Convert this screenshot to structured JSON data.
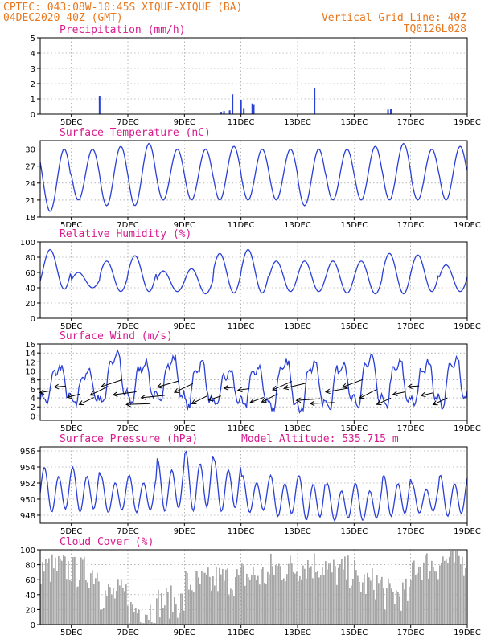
{
  "header": {
    "line1_left": "CPTEC:   043:08W-10:45S  XIQUE-XIQUE (BA)",
    "line2_left": "04DEC2020 40Z (GMT)",
    "line1_right": "Vertical Grid Line: 40Z",
    "line2_right": "TQ0126L028"
  },
  "colors": {
    "line": "#2a3fd6",
    "bar": "#2a3fd6",
    "cloud": "#a6a6a6",
    "header": "#e8781f",
    "title": "#d81c8e"
  },
  "x_ticks": [
    "5DEC",
    "7DEC",
    "9DEC",
    "11DEC",
    "13DEC",
    "15DEC",
    "17DEC",
    "19DEC"
  ],
  "chart_data": [
    {
      "id": "precip",
      "type": "bar",
      "title": "Precipitation (mm/h)",
      "ylim": [
        0,
        5
      ],
      "yticks": [
        0,
        1,
        2,
        3,
        4,
        5
      ],
      "x": [
        6.0,
        10.3,
        10.4,
        10.6,
        10.7,
        11.0,
        11.1,
        11.4,
        11.45,
        13.6,
        16.2,
        16.3
      ],
      "values": [
        1.2,
        0.15,
        0.2,
        0.25,
        1.3,
        0.9,
        0.4,
        0.7,
        0.6,
        1.7,
        0.3,
        0.35
      ]
    },
    {
      "id": "temp",
      "type": "line",
      "title": "Surface Temperature (nC)",
      "ylim": [
        18,
        31.5
      ],
      "yticks": [
        18,
        21,
        24,
        27,
        30
      ],
      "amp_min": [
        19,
        21,
        20,
        20,
        21,
        21,
        21,
        21,
        21,
        20,
        21,
        21,
        21,
        21,
        21,
        22
      ],
      "amp_max": [
        30,
        30,
        30.5,
        31,
        30,
        30,
        30.5,
        30,
        30,
        30,
        30,
        30.5,
        31,
        30,
        30.5,
        30.5
      ]
    },
    {
      "id": "rh",
      "type": "line",
      "title": "Relative Humidity (%)",
      "ylim": [
        0,
        100
      ],
      "yticks": [
        0,
        20,
        40,
        60,
        80,
        100
      ],
      "amp_min": [
        38,
        40,
        35,
        35,
        35,
        32,
        33,
        33,
        35,
        35,
        33,
        32,
        32,
        35,
        35,
        33
      ],
      "amp_max": [
        90,
        60,
        75,
        82,
        62,
        65,
        85,
        90,
        75,
        75,
        75,
        75,
        85,
        83,
        70,
        75
      ]
    },
    {
      "id": "wind",
      "type": "line",
      "title": "Surface Wind (m/s)",
      "ylim": [
        -1,
        16
      ],
      "yticks": [
        0,
        2,
        4,
        6,
        8,
        10,
        12,
        14,
        16
      ],
      "amp_min": [
        3,
        2.5,
        3,
        3,
        3,
        2,
        2,
        2,
        1.5,
        1,
        2,
        2,
        2,
        2.5,
        2,
        3
      ],
      "amp_max": [
        11,
        10,
        14,
        12,
        13,
        12,
        10,
        11,
        12,
        12,
        12,
        13,
        12,
        12,
        13,
        13
      ]
    },
    {
      "id": "press",
      "type": "line",
      "title": "Surface Pressure (hPa)",
      "subtitle": "Model Altitude: 535.715 m",
      "ylim": [
        947,
        956.5
      ],
      "yticks": [
        948,
        950,
        952,
        954,
        956
      ],
      "amp_min": [
        948,
        948,
        948,
        948,
        948,
        948,
        948,
        948,
        947.5,
        947,
        947,
        947,
        947.5,
        948,
        947.5,
        948
      ],
      "amp_max": [
        954,
        954,
        953,
        953,
        955,
        956,
        955,
        953,
        953,
        953,
        952,
        952,
        953,
        952,
        953,
        953
      ]
    },
    {
      "id": "cloud",
      "type": "bar",
      "title": "Cloud Cover (%)",
      "ylim": [
        0,
        100
      ],
      "yticks": [
        0,
        20,
        40,
        60,
        80,
        100
      ],
      "daily_mean": [
        75,
        70,
        40,
        20,
        30,
        55,
        60,
        65,
        75,
        80,
        70,
        55,
        40,
        80,
        85,
        85
      ]
    }
  ]
}
